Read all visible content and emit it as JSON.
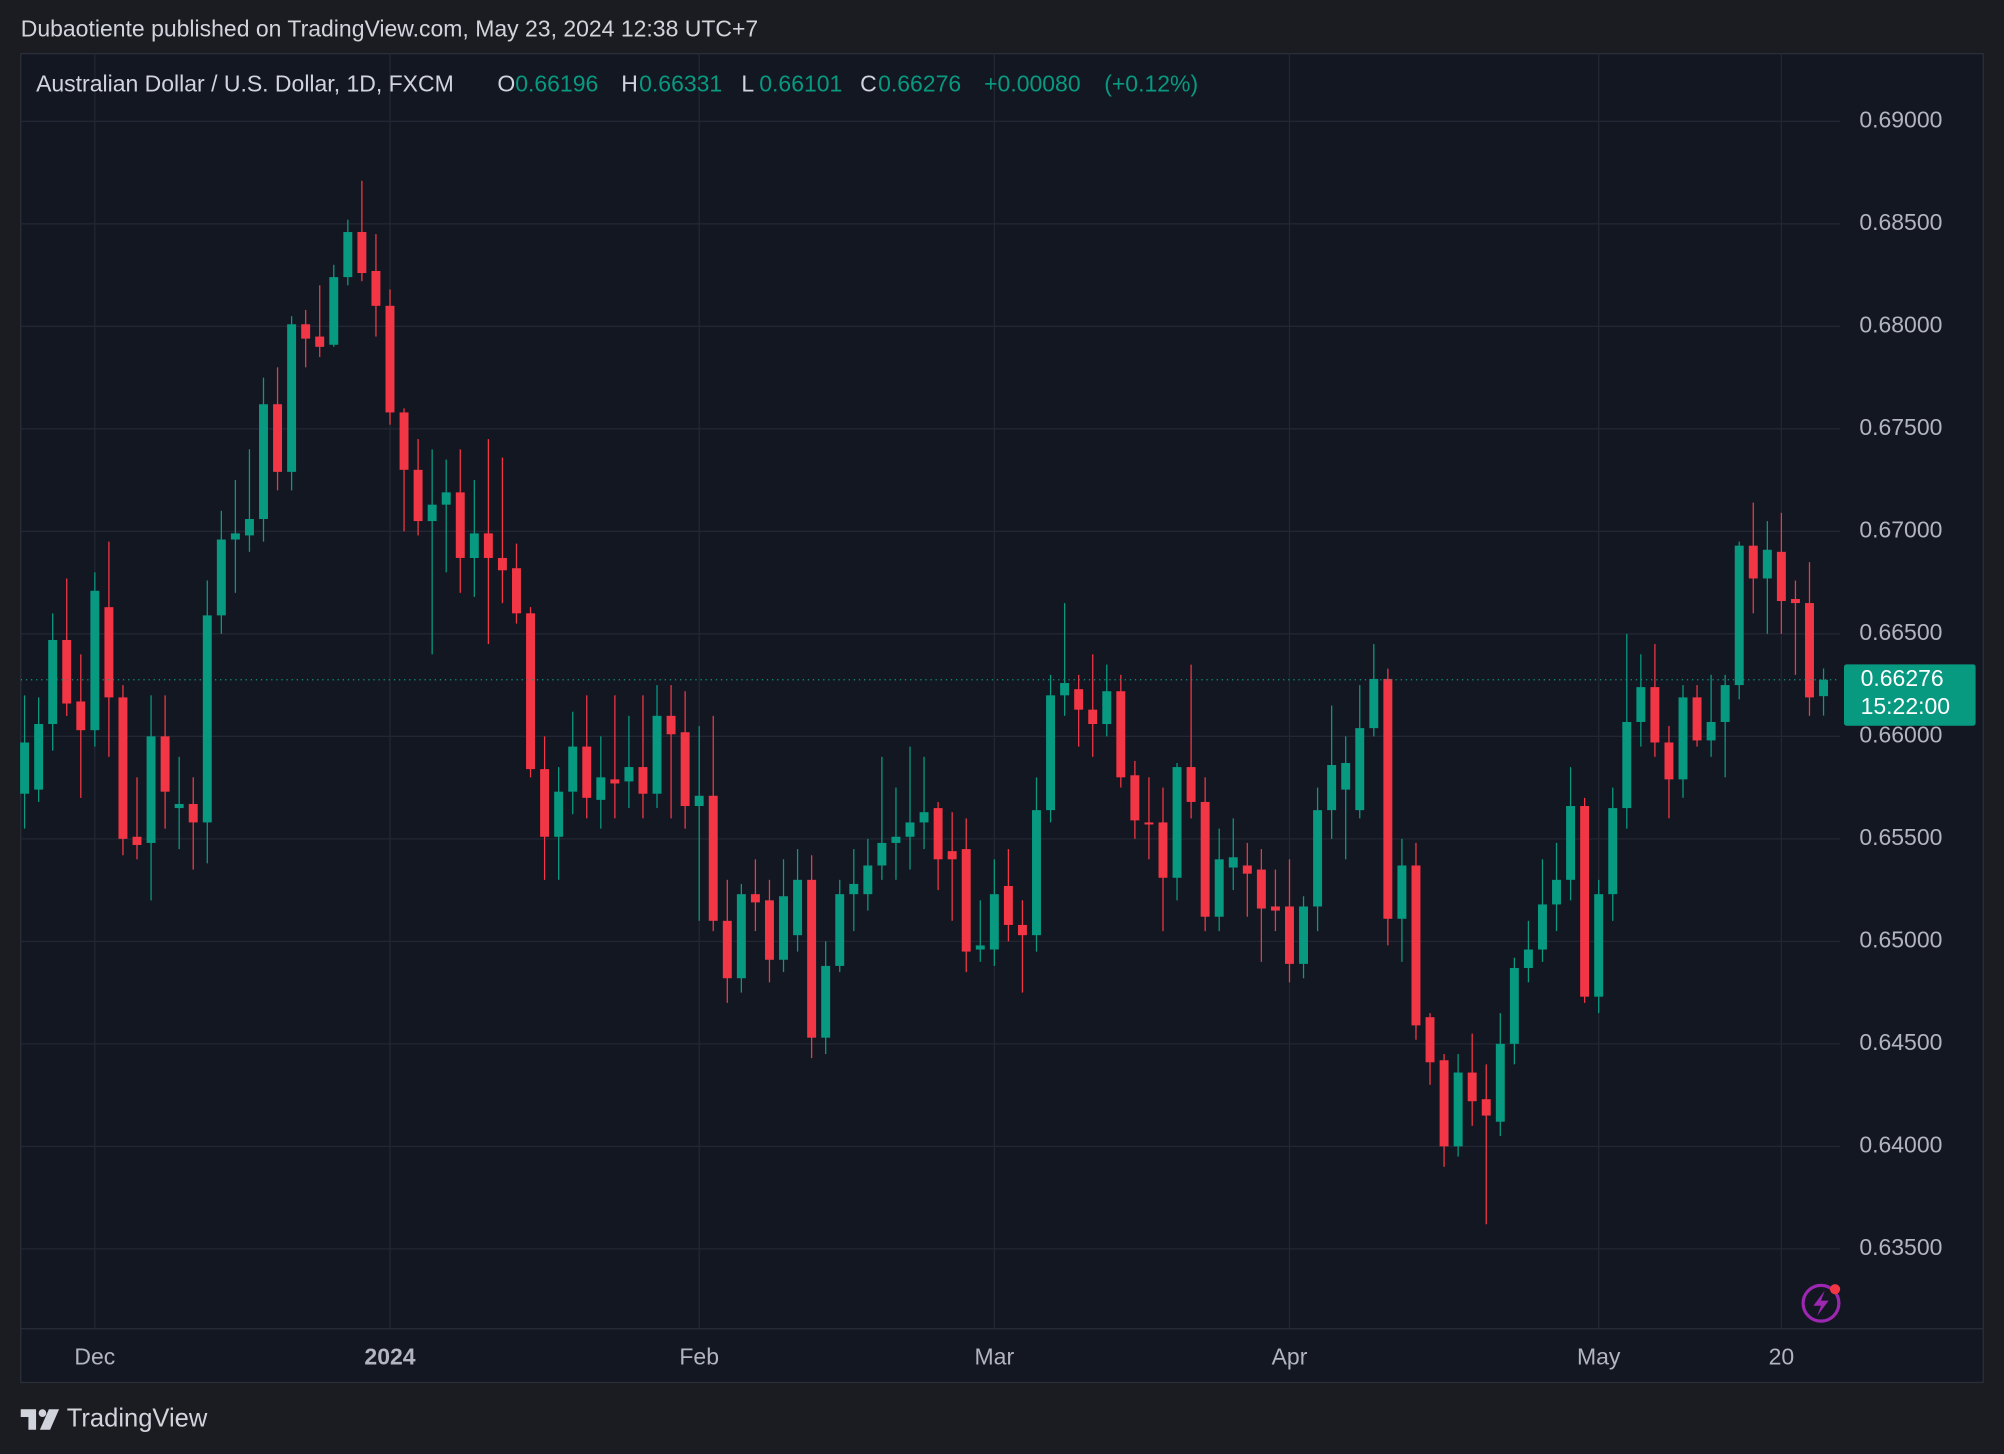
{
  "publisher": "Dubaotiente published on TradingView.com, May 23, 2024 12:38 UTC+7",
  "brand": "TradingView",
  "chart_data": {
    "type": "candlestick",
    "title": "Australian Dollar / U.S. Dollar, 1D, FXCM",
    "ohlc_labels": [
      "O",
      "H",
      "L",
      "C"
    ],
    "change": "+0.00080",
    "change_percent": "(+0.12%)",
    "countdown": "15:22:00",
    "up_color": "#089981",
    "down_color": "#f23645",
    "grid": true,
    "categories": [
      null,
      null,
      null,
      null,
      null,
      "Dec",
      null,
      null,
      null,
      null,
      null,
      null,
      null,
      null,
      null,
      null,
      null,
      null,
      null,
      null,
      null,
      null,
      null,
      null,
      null,
      null,
      "2024",
      null,
      null,
      null,
      null,
      null,
      null,
      null,
      null,
      null,
      null,
      null,
      null,
      null,
      null,
      null,
      null,
      null,
      null,
      null,
      null,
      null,
      "Feb",
      null,
      null,
      null,
      null,
      null,
      null,
      null,
      null,
      null,
      null,
      null,
      null,
      null,
      null,
      null,
      null,
      null,
      null,
      null,
      null,
      "Mar",
      null,
      null,
      null,
      null,
      null,
      null,
      null,
      null,
      null,
      null,
      null,
      null,
      null,
      null,
      null,
      null,
      null,
      null,
      null,
      null,
      "Apr",
      null,
      null,
      null,
      null,
      null,
      null,
      null,
      null,
      null,
      null,
      null,
      null,
      null,
      null,
      null,
      null,
      null,
      null,
      null,
      null,
      null,
      "May",
      null,
      null,
      null,
      null,
      null,
      null,
      null,
      null,
      null,
      null,
      null,
      null,
      "20",
      null,
      null,
      null
    ],
    "open": [
      0.6572,
      0.6574,
      0.6606,
      0.6647,
      0.6617,
      0.6603,
      0.6663,
      0.6619,
      0.6551,
      0.6548,
      0.66,
      0.6565,
      0.6567,
      0.6558,
      0.6659,
      0.6696,
      0.6698,
      0.6706,
      0.6762,
      0.6729,
      0.6801,
      0.6795,
      0.6791,
      0.6824,
      0.6846,
      0.6827,
      0.681,
      0.6758,
      0.673,
      0.6705,
      0.6713,
      0.6719,
      0.6687,
      0.6699,
      0.6687,
      0.6682,
      0.666,
      0.6584,
      0.6551,
      0.6573,
      0.6595,
      0.6569,
      0.6579,
      0.6578,
      0.6585,
      0.6572,
      0.661,
      0.6602,
      0.6566,
      0.6571,
      0.651,
      0.6482,
      0.6523,
      0.652,
      0.6491,
      0.6503,
      0.653,
      0.6453,
      0.6488,
      0.6523,
      0.6523,
      0.6537,
      0.6548,
      0.6551,
      0.6558,
      0.6565,
      0.6544,
      0.6545,
      0.6496,
      0.6496,
      0.6527,
      0.6508,
      0.6503,
      0.6564,
      0.662,
      0.6623,
      0.6613,
      0.6606,
      0.6622,
      0.6581,
      0.6558,
      0.6558,
      0.6531,
      0.6585,
      0.6568,
      0.6512,
      0.6536,
      0.6537,
      0.6535,
      0.6517,
      0.6517,
      0.6489,
      0.6517,
      0.6564,
      0.6574,
      0.6564,
      0.6604,
      0.6628,
      0.6511,
      0.6537,
      0.6463,
      0.6442,
      0.64,
      0.6436,
      0.6423,
      0.6412,
      0.645,
      0.6487,
      0.6496,
      0.6518,
      0.653,
      0.6566,
      0.6473,
      0.6523,
      0.6565,
      0.6607,
      0.6624,
      0.6597,
      0.6579,
      0.6619,
      0.6598,
      0.6607,
      0.6625,
      0.6693,
      0.6677,
      0.669,
      0.6667,
      0.6665,
      0.66196
    ],
    "high": [
      0.662,
      0.6619,
      0.666,
      0.6677,
      0.664,
      0.668,
      0.6695,
      0.6625,
      0.658,
      0.662,
      0.662,
      0.659,
      0.658,
      0.6676,
      0.671,
      0.6725,
      0.674,
      0.6775,
      0.678,
      0.6805,
      0.6808,
      0.682,
      0.683,
      0.6852,
      0.6871,
      0.6845,
      0.6818,
      0.676,
      0.6745,
      0.674,
      0.6735,
      0.674,
      0.6725,
      0.6745,
      0.6736,
      0.6694,
      0.6663,
      0.66,
      0.6585,
      0.6612,
      0.662,
      0.66,
      0.662,
      0.661,
      0.662,
      0.6625,
      0.6625,
      0.6622,
      0.6605,
      0.661,
      0.653,
      0.6528,
      0.654,
      0.653,
      0.654,
      0.6545,
      0.6542,
      0.65,
      0.653,
      0.6545,
      0.655,
      0.659,
      0.6575,
      0.6595,
      0.659,
      0.6568,
      0.6563,
      0.656,
      0.652,
      0.654,
      0.6545,
      0.652,
      0.658,
      0.663,
      0.6665,
      0.663,
      0.664,
      0.6635,
      0.663,
      0.6588,
      0.658,
      0.6575,
      0.6587,
      0.6635,
      0.658,
      0.6555,
      0.656,
      0.6548,
      0.6545,
      0.6535,
      0.654,
      0.6522,
      0.6575,
      0.6615,
      0.66,
      0.6625,
      0.6645,
      0.6633,
      0.655,
      0.6548,
      0.6465,
      0.6445,
      0.6445,
      0.6455,
      0.644,
      0.6465,
      0.6492,
      0.651,
      0.654,
      0.6548,
      0.6585,
      0.657,
      0.653,
      0.6575,
      0.665,
      0.664,
      0.6645,
      0.6605,
      0.6625,
      0.6625,
      0.663,
      0.663,
      0.6695,
      0.6714,
      0.6705,
      0.6709,
      0.6676,
      0.6685,
      0.66331
    ],
    "low": [
      0.6555,
      0.6568,
      0.6593,
      0.661,
      0.657,
      0.6595,
      0.659,
      0.6542,
      0.654,
      0.652,
      0.6555,
      0.6545,
      0.6535,
      0.6538,
      0.665,
      0.667,
      0.669,
      0.6695,
      0.672,
      0.672,
      0.678,
      0.6785,
      0.679,
      0.682,
      0.6822,
      0.6795,
      0.6752,
      0.67,
      0.6698,
      0.664,
      0.668,
      0.667,
      0.6668,
      0.6645,
      0.6665,
      0.6655,
      0.658,
      0.653,
      0.653,
      0.6562,
      0.656,
      0.6555,
      0.656,
      0.6565,
      0.656,
      0.6565,
      0.656,
      0.6555,
      0.651,
      0.6505,
      0.647,
      0.6475,
      0.6505,
      0.648,
      0.6485,
      0.6495,
      0.6443,
      0.6445,
      0.6485,
      0.6505,
      0.6515,
      0.653,
      0.653,
      0.6535,
      0.6545,
      0.6525,
      0.651,
      0.6485,
      0.649,
      0.6488,
      0.65,
      0.6475,
      0.6495,
      0.6558,
      0.661,
      0.6595,
      0.659,
      0.66,
      0.6575,
      0.655,
      0.654,
      0.6505,
      0.652,
      0.656,
      0.6505,
      0.6505,
      0.6525,
      0.6512,
      0.649,
      0.6505,
      0.648,
      0.6482,
      0.6505,
      0.655,
      0.654,
      0.656,
      0.66,
      0.6498,
      0.649,
      0.6452,
      0.643,
      0.639,
      0.6395,
      0.641,
      0.6362,
      0.6405,
      0.644,
      0.648,
      0.649,
      0.6505,
      0.652,
      0.647,
      0.6465,
      0.651,
      0.6555,
      0.6595,
      0.659,
      0.656,
      0.657,
      0.6595,
      0.659,
      0.658,
      0.6618,
      0.666,
      0.665,
      0.665,
      0.663,
      0.661,
      0.66101
    ],
    "close": [
      0.6597,
      0.6606,
      0.6647,
      0.6616,
      0.6603,
      0.6671,
      0.6619,
      0.655,
      0.6547,
      0.66,
      0.6573,
      0.6567,
      0.6558,
      0.6659,
      0.6696,
      0.6699,
      0.6706,
      0.6762,
      0.6729,
      0.6801,
      0.6794,
      0.679,
      0.6824,
      0.6846,
      0.6826,
      0.681,
      0.6758,
      0.673,
      0.6705,
      0.6713,
      0.6719,
      0.6687,
      0.6699,
      0.6687,
      0.6681,
      0.666,
      0.6584,
      0.6551,
      0.6573,
      0.6595,
      0.657,
      0.658,
      0.6577,
      0.6585,
      0.6572,
      0.661,
      0.6601,
      0.6566,
      0.6571,
      0.651,
      0.6482,
      0.6523,
      0.6519,
      0.6491,
      0.6522,
      0.653,
      0.6453,
      0.6488,
      0.6523,
      0.6528,
      0.6537,
      0.6548,
      0.6551,
      0.6558,
      0.6563,
      0.654,
      0.654,
      0.6495,
      0.6498,
      0.6523,
      0.6508,
      0.6503,
      0.6564,
      0.662,
      0.6626,
      0.6613,
      0.6606,
      0.6622,
      0.658,
      0.6559,
      0.6557,
      0.6531,
      0.6585,
      0.6568,
      0.6512,
      0.654,
      0.6541,
      0.6533,
      0.6516,
      0.6515,
      0.6489,
      0.6517,
      0.6564,
      0.6586,
      0.6587,
      0.6604,
      0.6628,
      0.6511,
      0.6537,
      0.6459,
      0.6441,
      0.64,
      0.6436,
      0.6422,
      0.6415,
      0.645,
      0.6487,
      0.6496,
      0.6518,
      0.653,
      0.6566,
      0.6473,
      0.6523,
      0.6565,
      0.6607,
      0.6624,
      0.6597,
      0.6579,
      0.6619,
      0.6598,
      0.6607,
      0.6625,
      0.6693,
      0.6677,
      0.6691,
      0.6666,
      0.6665,
      0.6619,
      0.66276
    ],
    "ylim": [
      0.6311,
      0.6933
    ],
    "yticks": [
      {
        "value": 0.69,
        "label": "0.69000"
      },
      {
        "value": 0.685,
        "label": "0.68500"
      },
      {
        "value": 0.68,
        "label": "0.68000"
      },
      {
        "value": 0.675,
        "label": "0.67500"
      },
      {
        "value": 0.67,
        "label": "0.67000"
      },
      {
        "value": 0.665,
        "label": "0.66500"
      },
      {
        "value": 0.66,
        "label": "0.66000"
      },
      {
        "value": 0.655,
        "label": "0.65500"
      },
      {
        "value": 0.65,
        "label": "0.65000"
      },
      {
        "value": 0.645,
        "label": "0.64500"
      },
      {
        "value": 0.64,
        "label": "0.64000"
      },
      {
        "value": 0.635,
        "label": "0.63500"
      }
    ]
  }
}
